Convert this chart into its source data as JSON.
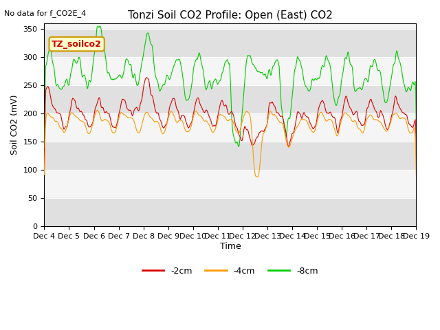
{
  "title": "Tonzi Soil CO2 Profile: Open (East) CO2",
  "subtitle": "No data for f_CO2E_4",
  "ylabel": "Soil CO2 (mV)",
  "xlabel": "Time",
  "legend_label": "TZ_soilco2",
  "ylim": [
    0,
    360
  ],
  "yticks": [
    0,
    50,
    100,
    150,
    200,
    250,
    300,
    350
  ],
  "xtick_labels": [
    "Dec 4",
    "Dec 5",
    "Dec 6",
    "Dec 7",
    "Dec 8",
    "Dec 9",
    "Dec 10",
    "Dec 11",
    "Dec 12",
    "Dec 13",
    "Dec 14",
    "Dec 15",
    "Dec 16",
    "Dec 17",
    "Dec 18",
    "Dec 19"
  ],
  "colors": {
    "red": "#dd0000",
    "orange": "#ff9900",
    "green": "#00cc00"
  },
  "line_labels": [
    "-2cm",
    "-4cm",
    "-8cm"
  ],
  "line_colors": [
    "#dd0000",
    "#ff9900",
    "#00cc00"
  ],
  "seed": 42
}
